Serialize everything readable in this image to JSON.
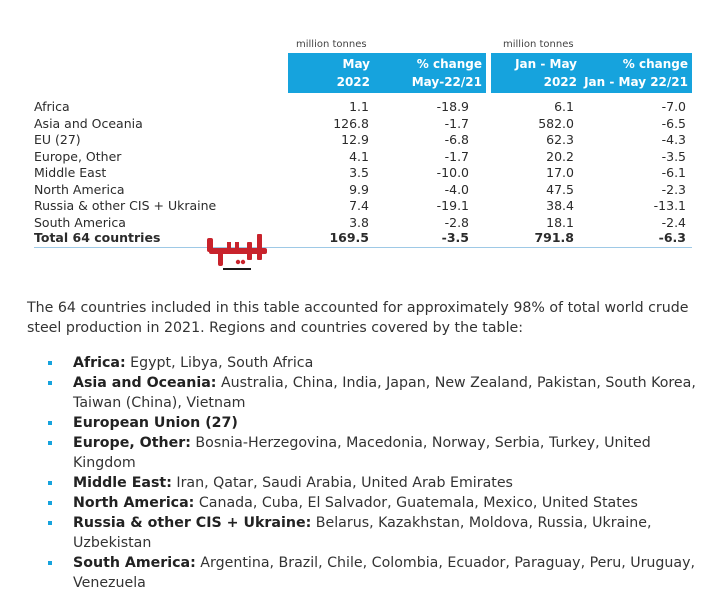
{
  "table": {
    "unit_may": "million tonnes",
    "unit_janmay": "million tonnes",
    "headers": [
      {
        "line1": "May",
        "line2": "2022"
      },
      {
        "line1": "% change",
        "line2": "May-22/21"
      },
      {
        "line1": "Jan - May",
        "line2": "2022"
      },
      {
        "line1": "% change",
        "line2": "Jan - May 22/21"
      }
    ],
    "header_color": "#16a3dd",
    "rows": [
      {
        "name": "Africa",
        "v1": "1.1",
        "v2": "-18.9",
        "v3": "6.1",
        "v4": "-7.0"
      },
      {
        "name": "Asia and Oceania",
        "v1": "126.8",
        "v2": "-1.7",
        "v3": "582.0",
        "v4": "-6.5"
      },
      {
        "name": "EU (27)",
        "v1": "12.9",
        "v2": "-6.8",
        "v3": "62.3",
        "v4": "-4.3"
      },
      {
        "name": "Europe, Other",
        "v1": "4.1",
        "v2": "-1.7",
        "v3": "20.2",
        "v4": "-3.5"
      },
      {
        "name": "Middle East",
        "v1": "3.5",
        "v2": "-10.0",
        "v3": "17.0",
        "v4": "-6.1"
      },
      {
        "name": "North America",
        "v1": "9.9",
        "v2": "-4.0",
        "v3": "47.5",
        "v4": "-2.3"
      },
      {
        "name": "Russia & other CIS + Ukraine",
        "v1": "7.4",
        "v2": "-19.1",
        "v3": "38.4",
        "v4": "-13.1"
      },
      {
        "name": "South America",
        "v1": "3.8",
        "v2": "-2.8",
        "v3": "18.1",
        "v4": "-2.4"
      }
    ],
    "total": {
      "name": "Total 64 countries",
      "v1": "169.5",
      "v2": "-3.5",
      "v3": "791.8",
      "v4": "-6.3"
    }
  },
  "watermark": {
    "text": "ایراسین",
    "color": "#c8232c"
  },
  "paragraph": "The 64 countries included in this table accounted for approximately 98% of total world crude steel production in 2021. Regions and countries covered by the table:",
  "bullets": [
    {
      "label": "Africa:",
      "text": " Egypt, Libya, South Africa"
    },
    {
      "label": "Asia and Oceania:",
      "text": " Australia, China, India, Japan, New Zealand, Pakistan, South Korea, Taiwan (China), Vietnam"
    },
    {
      "label": "European Union (27)",
      "text": ""
    },
    {
      "label": "Europe, Other:",
      "text": " Bosnia-Herzegovina, Macedonia, Norway, Serbia, Turkey, United Kingdom"
    },
    {
      "label": "Middle East:",
      "text": " Iran, Qatar, Saudi Arabia, United Arab Emirates"
    },
    {
      "label": "North America:",
      "text": " Canada, Cuba, El Salvador, Guatemala, Mexico, United States"
    },
    {
      "label": "Russia & other CIS + Ukraine:",
      "text": " Belarus, Kazakhstan, Moldova, Russia, Ukraine, Uzbekistan"
    },
    {
      "label": "South America:",
      "text": " Argentina, Brazil, Chile, Colombia, Ecuador, Paraguay, Peru, Uruguay, Venezuela"
    }
  ]
}
